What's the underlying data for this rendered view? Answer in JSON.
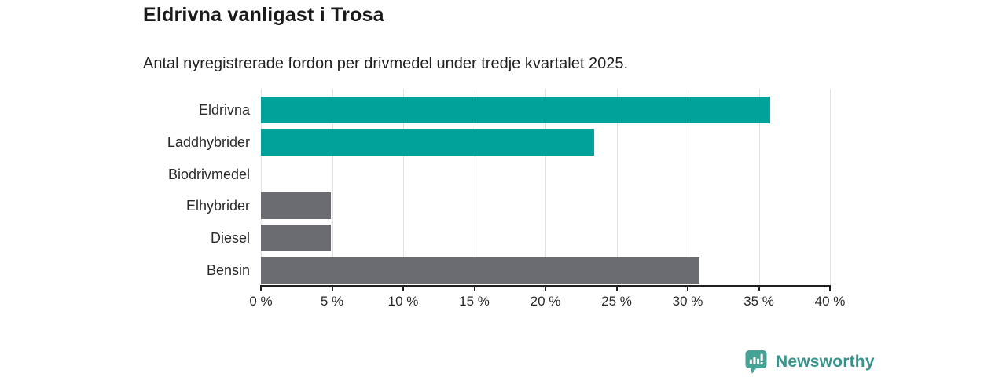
{
  "header": {
    "title": "Eldrivna vanligast i Trosa",
    "subtitle": "Antal nyregistrerade fordon per drivmedel under tredje kvartalet 2025."
  },
  "chart_data": {
    "type": "bar",
    "orientation": "horizontal",
    "title": "Eldrivna vanligast i Trosa",
    "subtitle": "Antal nyregistrerade fordon per drivmedel under tredje kvartalet 2025.",
    "categories": [
      "Eldrivna",
      "Laddhybrider",
      "Biodrivmedel",
      "Elhybrider",
      "Diesel",
      "Bensin"
    ],
    "values": [
      35.8,
      23.4,
      0,
      4.9,
      4.9,
      30.8
    ],
    "unit": "%",
    "xlim": [
      0,
      40
    ],
    "x_ticks": [
      0,
      5,
      10,
      15,
      20,
      25,
      30,
      35,
      40
    ],
    "x_tick_labels": [
      "0 %",
      "5 %",
      "10 %",
      "15 %",
      "20 %",
      "25 %",
      "30 %",
      "35 %",
      "40 %"
    ],
    "grid": "vertical-gridlines",
    "legend": "none",
    "bar_colors": [
      "#00a29a",
      "#00a29a",
      "#6b6b72",
      "#6b6b72",
      "#6b6b72",
      "#6b6b72"
    ],
    "highlight_color": "#00a29a",
    "default_color": "#6b6b72"
  },
  "branding": {
    "label": "Newsworthy",
    "text_color": "#38948b",
    "icon_color": "#47a296",
    "icon": "newsworthy-pin-chart-icon"
  },
  "colors": {
    "background": "#ffffff",
    "axis": "#1f1f1f",
    "gridline": "#e2e2e2",
    "text": "#2b2b2b",
    "title_text": "#1a1a1a"
  }
}
